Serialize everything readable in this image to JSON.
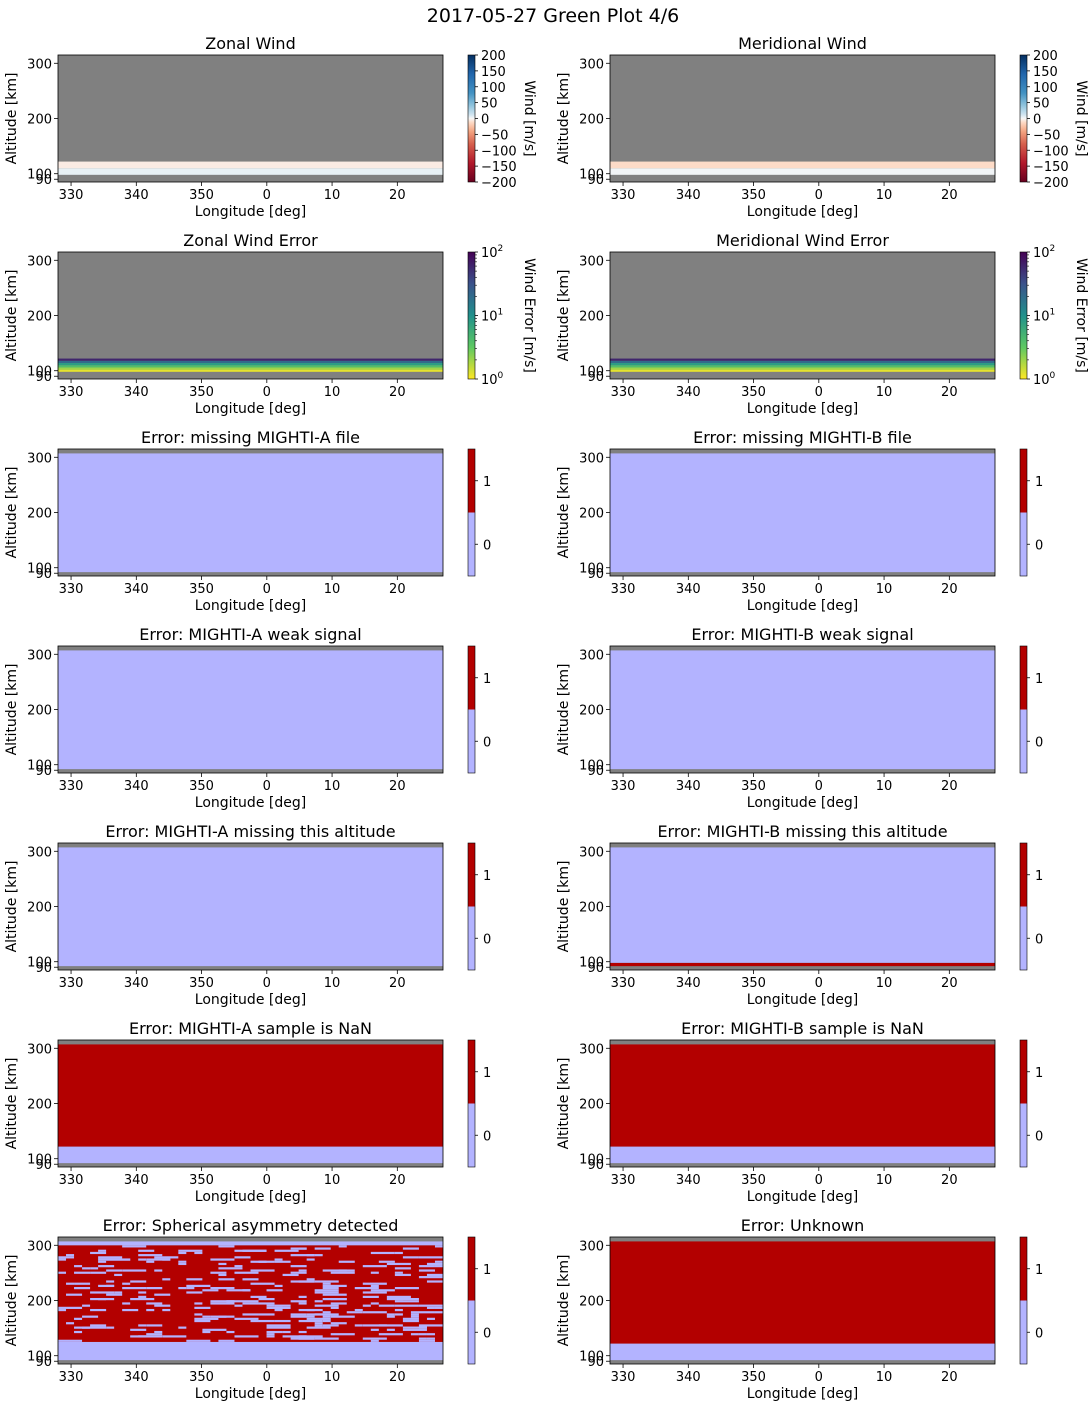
{
  "figure": {
    "title": "2017-05-27 Green Plot 4/6",
    "colors": {
      "nodata": "#808080",
      "flag0": "#b3b3ff",
      "flag1": "#b30000"
    }
  },
  "chart_data": [
    {
      "id": "zonal-wind",
      "type": "heatmap",
      "title": "Zonal Wind",
      "xlabel": "Longitude [deg]",
      "ylabel": "Altitude [km]",
      "xticks": [
        "330",
        "340",
        "350",
        "0",
        "10",
        "20"
      ],
      "yticks": [
        "90",
        "100",
        "200",
        "300"
      ],
      "xlim": [
        328,
        27
      ],
      "ylim": [
        85,
        315
      ],
      "colorbar": {
        "kind": "diverging",
        "label": "Wind [m/s]",
        "range": [
          -200,
          200
        ],
        "ticks": [
          "200",
          "150",
          "100",
          "50",
          "0",
          "−50",
          "−100",
          "−150",
          "−200"
        ]
      },
      "data_alt_range": [
        98,
        122
      ],
      "bands": [
        {
          "alt": [
            98,
            110
          ],
          "value": 5
        },
        {
          "alt": [
            110,
            122
          ],
          "value": -5
        }
      ]
    },
    {
      "id": "meridional-wind",
      "type": "heatmap",
      "title": "Meridional Wind",
      "xlabel": "Longitude [deg]",
      "ylabel": "Altitude [km]",
      "xticks": [
        "330",
        "340",
        "350",
        "0",
        "10",
        "20"
      ],
      "yticks": [
        "90",
        "100",
        "200",
        "300"
      ],
      "xlim": [
        328,
        27
      ],
      "ylim": [
        85,
        315
      ],
      "colorbar": {
        "kind": "diverging",
        "label": "Wind [m/s]",
        "range": [
          -200,
          200
        ],
        "ticks": [
          "200",
          "150",
          "100",
          "50",
          "0",
          "−50",
          "−100",
          "−150",
          "−200"
        ]
      },
      "data_alt_range": [
        98,
        122
      ],
      "bands": [
        {
          "alt": [
            98,
            110
          ],
          "value": 2
        },
        {
          "alt": [
            110,
            122
          ],
          "value": -12
        }
      ]
    },
    {
      "id": "zonal-wind-error",
      "type": "heatmap",
      "title": "Zonal Wind Error",
      "xlabel": "Longitude [deg]",
      "ylabel": "Altitude [km]",
      "xticks": [
        "330",
        "340",
        "350",
        "0",
        "10",
        "20"
      ],
      "yticks": [
        "90",
        "100",
        "200",
        "300"
      ],
      "xlim": [
        328,
        27
      ],
      "ylim": [
        85,
        315
      ],
      "colorbar": {
        "kind": "log",
        "label": "Wind Error [m/s]",
        "range": [
          1,
          100
        ],
        "ticks": [
          "10",
          "10",
          "10"
        ],
        "tick_exponents": [
          "2",
          "1",
          "0"
        ]
      },
      "data_alt_range": [
        98,
        122
      ],
      "bands": [
        {
          "alt": [
            98,
            102
          ],
          "value": 1.2
        },
        {
          "alt": [
            102,
            106
          ],
          "value": 2
        },
        {
          "alt": [
            106,
            110
          ],
          "value": 4
        },
        {
          "alt": [
            110,
            114
          ],
          "value": 8
        },
        {
          "alt": [
            114,
            118
          ],
          "value": 20
        },
        {
          "alt": [
            118,
            122
          ],
          "value": 60
        }
      ]
    },
    {
      "id": "meridional-wind-error",
      "type": "heatmap",
      "title": "Meridional Wind Error",
      "xlabel": "Longitude [deg]",
      "ylabel": "Altitude [km]",
      "xticks": [
        "330",
        "340",
        "350",
        "0",
        "10",
        "20"
      ],
      "yticks": [
        "90",
        "100",
        "200",
        "300"
      ],
      "xlim": [
        328,
        27
      ],
      "ylim": [
        85,
        315
      ],
      "colorbar": {
        "kind": "log",
        "label": "Wind Error [m/s]",
        "range": [
          1,
          100
        ],
        "ticks": [
          "10",
          "10",
          "10"
        ],
        "tick_exponents": [
          "2",
          "1",
          "0"
        ]
      },
      "data_alt_range": [
        98,
        122
      ],
      "bands": [
        {
          "alt": [
            98,
            102
          ],
          "value": 1.2
        },
        {
          "alt": [
            102,
            106
          ],
          "value": 2
        },
        {
          "alt": [
            106,
            110
          ],
          "value": 4
        },
        {
          "alt": [
            110,
            114
          ],
          "value": 8
        },
        {
          "alt": [
            114,
            118
          ],
          "value": 20
        },
        {
          "alt": [
            118,
            122
          ],
          "value": 60
        }
      ]
    },
    {
      "id": "missing-mighti-a-file",
      "type": "heatmap",
      "title": "Error: missing MIGHTI-A file",
      "xlabel": "Longitude [deg]",
      "ylabel": "Altitude [km]",
      "xticks": [
        "330",
        "340",
        "350",
        "0",
        "10",
        "20"
      ],
      "yticks": [
        "90",
        "100",
        "200",
        "300"
      ],
      "xlim": [
        328,
        27
      ],
      "ylim": [
        85,
        315
      ],
      "colorbar": {
        "kind": "flag",
        "ticks": [
          "1",
          "0"
        ]
      },
      "data_alt_range": [
        92,
        307
      ],
      "bands": [
        {
          "alt": [
            92,
            307
          ],
          "value": 0
        }
      ]
    },
    {
      "id": "missing-mighti-b-file",
      "type": "heatmap",
      "title": "Error: missing MIGHTI-B file",
      "xlabel": "Longitude [deg]",
      "ylabel": "Altitude [km]",
      "xticks": [
        "330",
        "340",
        "350",
        "0",
        "10",
        "20"
      ],
      "yticks": [
        "90",
        "100",
        "200",
        "300"
      ],
      "xlim": [
        328,
        27
      ],
      "ylim": [
        85,
        315
      ],
      "colorbar": {
        "kind": "flag",
        "ticks": [
          "1",
          "0"
        ]
      },
      "data_alt_range": [
        92,
        307
      ],
      "bands": [
        {
          "alt": [
            92,
            307
          ],
          "value": 0
        }
      ]
    },
    {
      "id": "mighti-a-weak-signal",
      "type": "heatmap",
      "title": "Error: MIGHTI-A weak signal",
      "xlabel": "Longitude [deg]",
      "ylabel": "Altitude [km]",
      "xticks": [
        "330",
        "340",
        "350",
        "0",
        "10",
        "20"
      ],
      "yticks": [
        "90",
        "100",
        "200",
        "300"
      ],
      "xlim": [
        328,
        27
      ],
      "ylim": [
        85,
        315
      ],
      "colorbar": {
        "kind": "flag",
        "ticks": [
          "1",
          "0"
        ]
      },
      "data_alt_range": [
        92,
        307
      ],
      "bands": [
        {
          "alt": [
            92,
            307
          ],
          "value": 0
        }
      ]
    },
    {
      "id": "mighti-b-weak-signal",
      "type": "heatmap",
      "title": "Error: MIGHTI-B weak signal",
      "xlabel": "Longitude [deg]",
      "ylabel": "Altitude [km]",
      "xticks": [
        "330",
        "340",
        "350",
        "0",
        "10",
        "20"
      ],
      "yticks": [
        "90",
        "100",
        "200",
        "300"
      ],
      "xlim": [
        328,
        27
      ],
      "ylim": [
        85,
        315
      ],
      "colorbar": {
        "kind": "flag",
        "ticks": [
          "1",
          "0"
        ]
      },
      "data_alt_range": [
        92,
        307
      ],
      "bands": [
        {
          "alt": [
            92,
            307
          ],
          "value": 0
        }
      ]
    },
    {
      "id": "mighti-a-missing-altitude",
      "type": "heatmap",
      "title": "Error: MIGHTI-A missing this altitude",
      "xlabel": "Longitude [deg]",
      "ylabel": "Altitude [km]",
      "xticks": [
        "330",
        "340",
        "350",
        "0",
        "10",
        "20"
      ],
      "yticks": [
        "90",
        "100",
        "200",
        "300"
      ],
      "xlim": [
        328,
        27
      ],
      "ylim": [
        85,
        315
      ],
      "colorbar": {
        "kind": "flag",
        "ticks": [
          "1",
          "0"
        ]
      },
      "data_alt_range": [
        92,
        307
      ],
      "bands": [
        {
          "alt": [
            92,
            307
          ],
          "value": 0
        }
      ]
    },
    {
      "id": "mighti-b-missing-altitude",
      "type": "heatmap",
      "title": "Error: MIGHTI-B missing this altitude",
      "xlabel": "Longitude [deg]",
      "ylabel": "Altitude [km]",
      "xticks": [
        "330",
        "340",
        "350",
        "0",
        "10",
        "20"
      ],
      "yticks": [
        "90",
        "100",
        "200",
        "300"
      ],
      "xlim": [
        328,
        27
      ],
      "ylim": [
        85,
        315
      ],
      "colorbar": {
        "kind": "flag",
        "ticks": [
          "1",
          "0"
        ]
      },
      "data_alt_range": [
        92,
        307
      ],
      "bands": [
        {
          "alt": [
            92,
            98
          ],
          "value": 1
        },
        {
          "alt": [
            98,
            307
          ],
          "value": 0
        }
      ]
    },
    {
      "id": "mighti-a-sample-nan",
      "type": "heatmap",
      "title": "Error: MIGHTI-A sample is NaN",
      "xlabel": "Longitude [deg]",
      "ylabel": "Altitude [km]",
      "xticks": [
        "330",
        "340",
        "350",
        "0",
        "10",
        "20"
      ],
      "yticks": [
        "90",
        "100",
        "200",
        "300"
      ],
      "xlim": [
        328,
        27
      ],
      "ylim": [
        85,
        315
      ],
      "colorbar": {
        "kind": "flag",
        "ticks": [
          "1",
          "0"
        ]
      },
      "data_alt_range": [
        92,
        307
      ],
      "bands": [
        {
          "alt": [
            92,
            122
          ],
          "value": 0
        },
        {
          "alt": [
            122,
            307
          ],
          "value": 1
        }
      ]
    },
    {
      "id": "mighti-b-sample-nan",
      "type": "heatmap",
      "title": "Error: MIGHTI-B sample is NaN",
      "xlabel": "Longitude [deg]",
      "ylabel": "Altitude [km]",
      "xticks": [
        "330",
        "340",
        "350",
        "0",
        "10",
        "20"
      ],
      "yticks": [
        "90",
        "100",
        "200",
        "300"
      ],
      "xlim": [
        328,
        27
      ],
      "ylim": [
        85,
        315
      ],
      "colorbar": {
        "kind": "flag",
        "ticks": [
          "1",
          "0"
        ]
      },
      "data_alt_range": [
        92,
        307
      ],
      "bands": [
        {
          "alt": [
            92,
            122
          ],
          "value": 0
        },
        {
          "alt": [
            122,
            307
          ],
          "value": 1
        }
      ]
    },
    {
      "id": "spherical-asymmetry",
      "type": "heatmap",
      "title": "Error: Spherical asymmetry detected",
      "xlabel": "Longitude [deg]",
      "ylabel": "Altitude [km]",
      "xticks": [
        "330",
        "340",
        "350",
        "0",
        "10",
        "20"
      ],
      "yticks": [
        "90",
        "100",
        "200",
        "300"
      ],
      "xlim": [
        328,
        27
      ],
      "ylim": [
        85,
        315
      ],
      "colorbar": {
        "kind": "flag",
        "ticks": [
          "1",
          "0"
        ]
      },
      "data_alt_range": [
        92,
        307
      ],
      "bands": [
        {
          "alt": [
            92,
            125
          ],
          "value": 0
        },
        {
          "alt": [
            125,
            300
          ],
          "value": 1
        },
        {
          "alt": [
            300,
            307
          ],
          "value": 0
        }
      ],
      "pattern": "mixed"
    },
    {
      "id": "unknown-error",
      "type": "heatmap",
      "title": "Error: Unknown",
      "xlabel": "Longitude [deg]",
      "ylabel": "Altitude [km]",
      "xticks": [
        "330",
        "340",
        "350",
        "0",
        "10",
        "20"
      ],
      "yticks": [
        "90",
        "100",
        "200",
        "300"
      ],
      "xlim": [
        328,
        27
      ],
      "ylim": [
        85,
        315
      ],
      "colorbar": {
        "kind": "flag",
        "ticks": [
          "1",
          "0"
        ]
      },
      "data_alt_range": [
        92,
        307
      ],
      "bands": [
        {
          "alt": [
            92,
            122
          ],
          "value": 0
        },
        {
          "alt": [
            122,
            307
          ],
          "value": 1
        }
      ]
    }
  ]
}
